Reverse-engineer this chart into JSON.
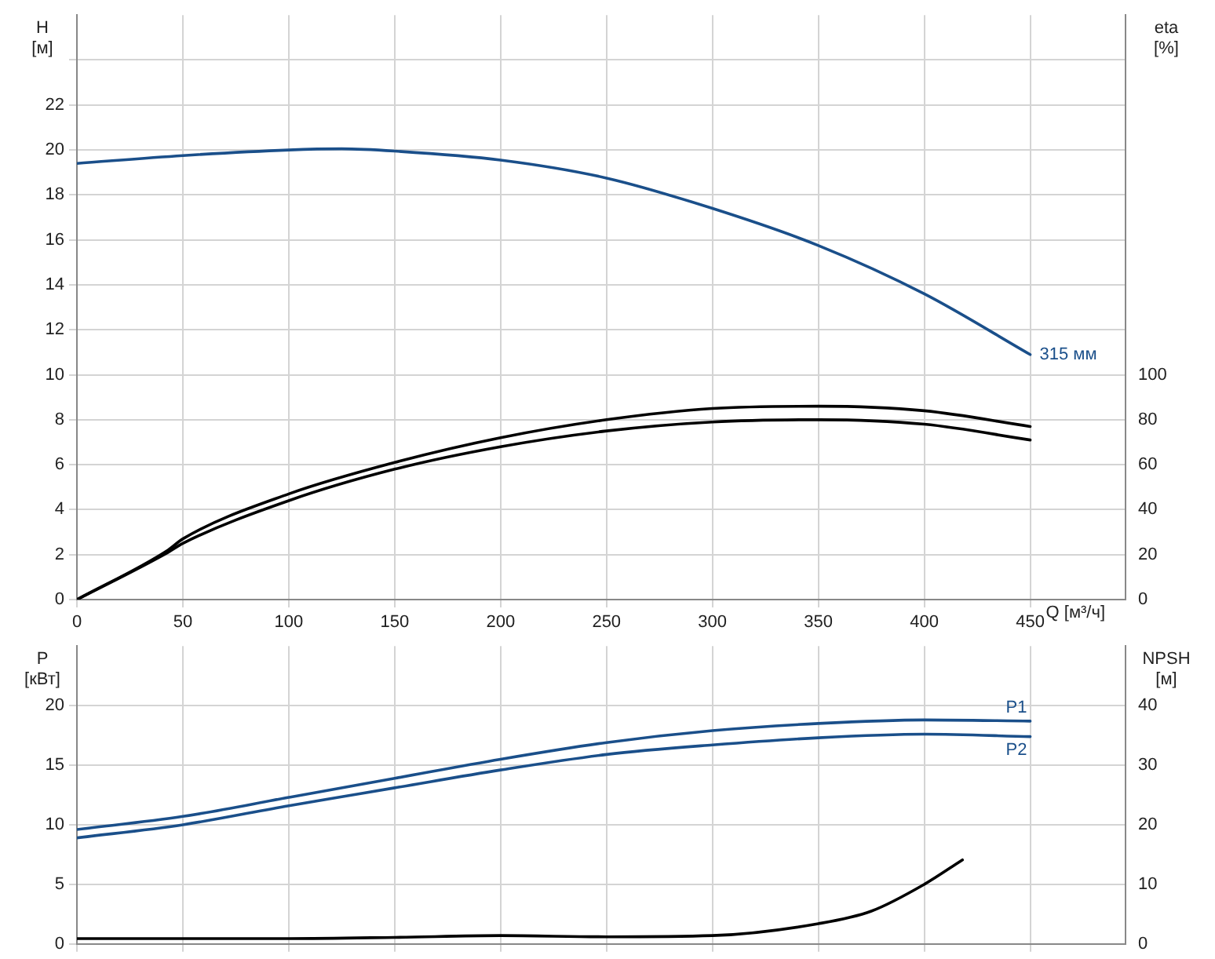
{
  "chart_data": [
    {
      "type": "line",
      "xlabel": "Q [м³/ч]",
      "ylabel": "H [м]",
      "y2label": "eta [%]",
      "xlim": [
        0,
        495
      ],
      "xticks": [
        0,
        50,
        100,
        150,
        200,
        250,
        300,
        350,
        400,
        450
      ],
      "ylim": [
        0,
        26
      ],
      "yticks": [
        0,
        2,
        4,
        6,
        8,
        10,
        12,
        14,
        16,
        18,
        20,
        22,
        {
          "value": 24,
          "label": null
        }
      ],
      "y2lim": [
        0,
        260
      ],
      "y2ticks": [
        0,
        20,
        40,
        60,
        80,
        100
      ],
      "grid": true,
      "legend": false,
      "marker": "none",
      "series": [
        {
          "name": "315 мм",
          "color": "#1a4f8a",
          "x": [
            0,
            50,
            100,
            125,
            150,
            200,
            250,
            300,
            350,
            400,
            450
          ],
          "values": [
            19.4,
            19.75,
            20.0,
            20.05,
            19.95,
            19.55,
            18.75,
            17.4,
            15.75,
            13.6,
            10.9
          ]
        },
        {
          "color": "#000000",
          "axis": "y2",
          "x": [
            0,
            43,
            50,
            100,
            150,
            200,
            250,
            300,
            350,
            400,
            450
          ],
          "values": [
            0,
            22,
            27,
            47,
            61,
            72,
            80,
            85,
            86,
            84,
            77
          ]
        },
        {
          "color": "#000000",
          "axis": "y2",
          "x": [
            0,
            43,
            50,
            100,
            150,
            200,
            250,
            300,
            350,
            400,
            450
          ],
          "values": [
            0,
            21,
            25,
            44,
            58,
            68,
            75,
            79,
            80,
            78,
            71
          ]
        }
      ]
    },
    {
      "type": "line",
      "ylabel": "P [кВт]",
      "y2label": "NPSH [м]",
      "xlim": [
        0,
        495
      ],
      "xticks": [
        0,
        50,
        100,
        150,
        200,
        250,
        300,
        350,
        400,
        450
      ],
      "ylim": [
        0,
        25
      ],
      "yticks": [
        0,
        5,
        10,
        15,
        20
      ],
      "y2lim": [
        0,
        50
      ],
      "y2ticks": [
        0,
        10,
        20,
        30,
        40
      ],
      "tick_labels": "y",
      "grid": true,
      "legend": false,
      "marker": "none",
      "series": [
        {
          "name": "P1",
          "color": "#1a4f8a",
          "x": [
            0,
            50,
            100,
            150,
            200,
            250,
            300,
            350,
            400,
            450
          ],
          "values": [
            9.6,
            10.7,
            12.3,
            13.9,
            15.5,
            16.9,
            17.9,
            18.5,
            18.8,
            18.7
          ]
        },
        {
          "name": "P2",
          "color": "#1a4f8a",
          "x": [
            0,
            50,
            100,
            150,
            200,
            250,
            300,
            350,
            400,
            450
          ],
          "values": [
            8.9,
            10.0,
            11.6,
            13.1,
            14.6,
            15.9,
            16.7,
            17.3,
            17.6,
            17.4
          ]
        },
        {
          "color": "#000000",
          "axis": "y2",
          "x": [
            0,
            100,
            150,
            200,
            250,
            300,
            350,
            375,
            400,
            418
          ],
          "values": [
            0.9,
            0.9,
            1.1,
            1.4,
            1.2,
            1.4,
            3.4,
            5.5,
            10.0,
            14.1
          ]
        }
      ]
    }
  ]
}
